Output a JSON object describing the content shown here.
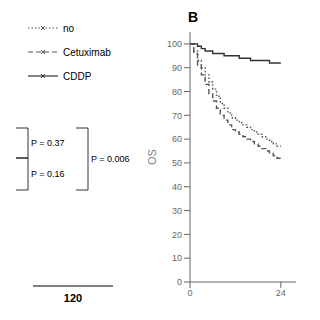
{
  "chart_data": {
    "type": "step",
    "title": "B",
    "ylabel": "OS",
    "x": [
      0,
      1,
      2,
      3,
      4,
      5,
      6,
      7,
      8,
      9,
      10,
      11,
      12,
      13,
      14,
      15,
      16,
      17,
      18,
      19,
      20,
      21,
      22,
      23,
      24
    ],
    "series": [
      {
        "name": "no",
        "color": "#555555",
        "line_style": "dotted",
        "values": [
          100,
          97,
          93,
          90,
          87,
          84,
          81,
          78,
          75,
          73,
          71,
          69,
          68,
          67,
          66,
          65,
          64,
          63,
          62,
          61,
          60,
          59,
          58,
          57,
          57
        ]
      },
      {
        "name": "Cetuximab",
        "color": "#555555",
        "line_style": "dashed",
        "values": [
          100,
          96,
          91,
          87,
          83,
          79,
          76,
          73,
          70,
          68,
          66,
          64,
          63,
          62,
          61,
          60,
          59,
          58,
          57,
          56,
          55,
          54,
          53,
          52,
          52
        ]
      },
      {
        "name": "CDDP",
        "color": "#333333",
        "line_style": "solid",
        "values": [
          100,
          100,
          99,
          98,
          97,
          97,
          96,
          96,
          96,
          95,
          95,
          95,
          95,
          94,
          94,
          94,
          93,
          93,
          93,
          93,
          93,
          92,
          92,
          92,
          92
        ]
      }
    ],
    "xlim": [
      0,
      28
    ],
    "xticks": [
      0,
      24
    ],
    "ylim": [
      0,
      105
    ],
    "yticks": [
      0,
      10,
      20,
      30,
      40,
      50,
      60,
      70,
      80,
      90,
      100
    ],
    "grid": false,
    "legend": "left",
    "annotations": [
      "P = 0.37",
      "P = 0.16",
      "P = 0.006",
      "120"
    ]
  }
}
